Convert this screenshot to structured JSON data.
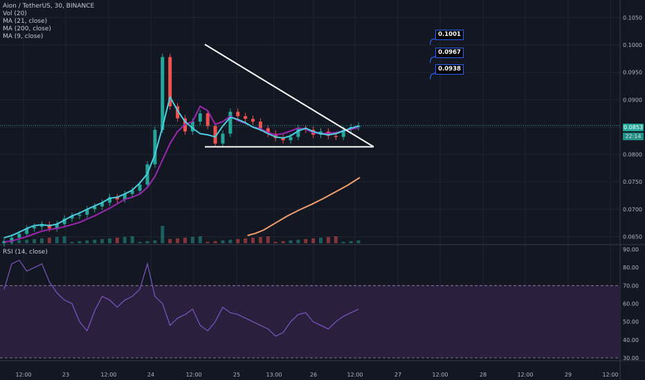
{
  "header": {
    "symbol_line": "Aion / TetherUS, 30, BINANCE",
    "indicators": [
      "Vol (20)",
      "MA (21, close)",
      "MA (200, close)",
      "MA (9, close)"
    ],
    "rsi_label": "RSI (14, close)"
  },
  "price_axis": {
    "ticks": [
      "0.1050",
      "0.1000",
      "0.0950",
      "0.0900",
      "0.0850",
      "0.0800",
      "0.0750",
      "0.0700",
      "0.0650"
    ],
    "last_price": "0.0853",
    "countdown": "22:14"
  },
  "rsi_axis": {
    "ticks": [
      "90.00",
      "80.00",
      "70.00",
      "60.00",
      "50.00",
      "40.00",
      "30.00"
    ]
  },
  "time_axis": {
    "ticks": [
      "12:00",
      "23",
      "12:00",
      "24",
      "12:00",
      "25",
      "13:00",
      "26",
      "12:00",
      "27",
      "12:00",
      "28",
      "12:00",
      "29",
      "12:00"
    ]
  },
  "annotations": [
    "0.1001",
    "0.0967",
    "0.0938"
  ],
  "colors": {
    "background": "#131722",
    "up": "#26a69a",
    "down": "#ef5350",
    "ma9": "#4dd0e1",
    "ma21": "#9c27b0",
    "ma200": "#f5a06e",
    "rsi": "#7e57c2",
    "trendline": "#ffffff"
  },
  "chart_data": {
    "type": "line",
    "title": "Aion / TetherUS, 30, BINANCE",
    "ylim": [
      0.0638,
      0.1072
    ],
    "rsi_ylim": [
      30,
      90
    ],
    "rsi_band": [
      30,
      70
    ],
    "price_series": {
      "name": "Aion / TetherUS",
      "values": [
        0.0642,
        0.0648,
        0.0655,
        0.0665,
        0.0668,
        0.0672,
        0.0665,
        0.0673,
        0.0683,
        0.0688,
        0.069,
        0.07,
        0.0705,
        0.0712,
        0.0722,
        0.0718,
        0.0728,
        0.0734,
        0.0745,
        0.0782,
        0.0845,
        0.0978,
        0.0888,
        0.0866,
        0.0842,
        0.086,
        0.0875,
        0.0852,
        0.082,
        0.0838,
        0.0878,
        0.087,
        0.0865,
        0.086,
        0.0848,
        0.0838,
        0.083,
        0.0826,
        0.0832,
        0.0848,
        0.0845,
        0.0836,
        0.0842,
        0.0834,
        0.0832,
        0.0845,
        0.085,
        0.0853
      ]
    },
    "series": [
      {
        "name": "MA (9, close)",
        "values": [
          0.0648,
          0.0652,
          0.0658,
          0.0665,
          0.067,
          0.0672,
          0.067,
          0.0673,
          0.068,
          0.0688,
          0.0693,
          0.07,
          0.0706,
          0.0712,
          0.072,
          0.0722,
          0.0728,
          0.0735,
          0.0748,
          0.0765,
          0.08,
          0.085,
          0.0905,
          0.088,
          0.086,
          0.0848,
          0.0838,
          0.0836,
          0.0832,
          0.0852,
          0.0868,
          0.0864,
          0.0858,
          0.085,
          0.0845,
          0.0838,
          0.0832,
          0.083,
          0.0834,
          0.0843,
          0.0848,
          0.0842,
          0.0838,
          0.0836,
          0.0838,
          0.0843,
          0.0848,
          0.0852
        ]
      },
      {
        "name": "MA (21, close)",
        "values": [
          0.064,
          0.0642,
          0.0646,
          0.065,
          0.0655,
          0.066,
          0.0663,
          0.0665,
          0.0668,
          0.0672,
          0.0676,
          0.0682,
          0.0688,
          0.0695,
          0.0702,
          0.071,
          0.0718,
          0.0722,
          0.0728,
          0.074,
          0.076,
          0.079,
          0.082,
          0.0842,
          0.0855,
          0.086,
          0.0888,
          0.088,
          0.0855,
          0.086,
          0.087,
          0.0862,
          0.0857,
          0.085,
          0.0847,
          0.084,
          0.0836,
          0.0838,
          0.0843,
          0.0848,
          0.0846,
          0.084,
          0.0838,
          0.0839,
          0.084,
          0.0843,
          0.0846,
          0.0849
        ]
      },
      {
        "name": "MA (200, close)",
        "x": [
          0.44,
          0.48,
          0.52,
          0.58,
          0.64,
          0.7,
          0.76,
          0.82,
          0.88,
          0.94,
          1.0
        ],
        "values": [
          0.0652,
          0.0656,
          0.0662,
          0.0675,
          0.0688,
          0.0699,
          0.0709,
          0.072,
          0.0732,
          0.0744,
          0.0758
        ]
      }
    ],
    "trendlines": [
      {
        "from": [
          0.0,
          0.1001
        ],
        "to": [
          1.0,
          0.0814
        ]
      },
      {
        "from": [
          0.0,
          0.0814
        ],
        "to": [
          1.0,
          0.0814
        ]
      }
    ],
    "rsi": {
      "name": "RSI (14, close)",
      "values": [
        68,
        82,
        84,
        78,
        80,
        82,
        72,
        66,
        62,
        60,
        50,
        45,
        56,
        64,
        62,
        58,
        62,
        64,
        68,
        82,
        64,
        60,
        48,
        52,
        54,
        57,
        48,
        45,
        50,
        58,
        55,
        54,
        52,
        50,
        48,
        46,
        42,
        44,
        50,
        54,
        55,
        50,
        48,
        46,
        50,
        53,
        55,
        57
      ]
    }
  }
}
